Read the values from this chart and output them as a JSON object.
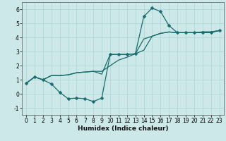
{
  "xlabel": "Humidex (Indice chaleur)",
  "ylim": [
    -1.5,
    6.5
  ],
  "xlim": [
    -0.5,
    23.5
  ],
  "yticks": [
    -1,
    0,
    1,
    2,
    3,
    4,
    5,
    6
  ],
  "xticks": [
    0,
    1,
    2,
    3,
    4,
    5,
    6,
    7,
    8,
    9,
    10,
    11,
    12,
    13,
    14,
    15,
    16,
    17,
    18,
    19,
    20,
    21,
    22,
    23
  ],
  "bg_color": "#cce8e8",
  "grid_color": "#aad4d4",
  "line_color": "#1a6b6b",
  "line1": [
    0.75,
    1.2,
    1.0,
    0.7,
    0.1,
    -0.35,
    -0.3,
    -0.35,
    -0.55,
    -0.3,
    2.8,
    2.8,
    2.8,
    2.85,
    5.5,
    6.1,
    5.85,
    4.85,
    4.35,
    4.35,
    4.35,
    4.35,
    4.35,
    4.5
  ],
  "line2": [
    0.75,
    1.2,
    1.0,
    1.3,
    1.3,
    1.35,
    1.5,
    1.55,
    1.6,
    1.6,
    2.0,
    2.4,
    2.6,
    2.85,
    3.9,
    4.1,
    4.3,
    4.4,
    4.35,
    4.35,
    4.35,
    4.4,
    4.4,
    4.5
  ],
  "line3": [
    0.75,
    1.2,
    1.0,
    1.3,
    1.3,
    1.35,
    1.5,
    1.55,
    1.6,
    1.4,
    2.8,
    2.8,
    2.8,
    2.85,
    3.1,
    4.1,
    4.3,
    4.4,
    4.35,
    4.35,
    4.35,
    4.4,
    4.4,
    4.5
  ],
  "marker_size": 2.5,
  "linewidth": 0.9,
  "xlabel_fontsize": 6.5,
  "tick_fontsize": 5.5
}
